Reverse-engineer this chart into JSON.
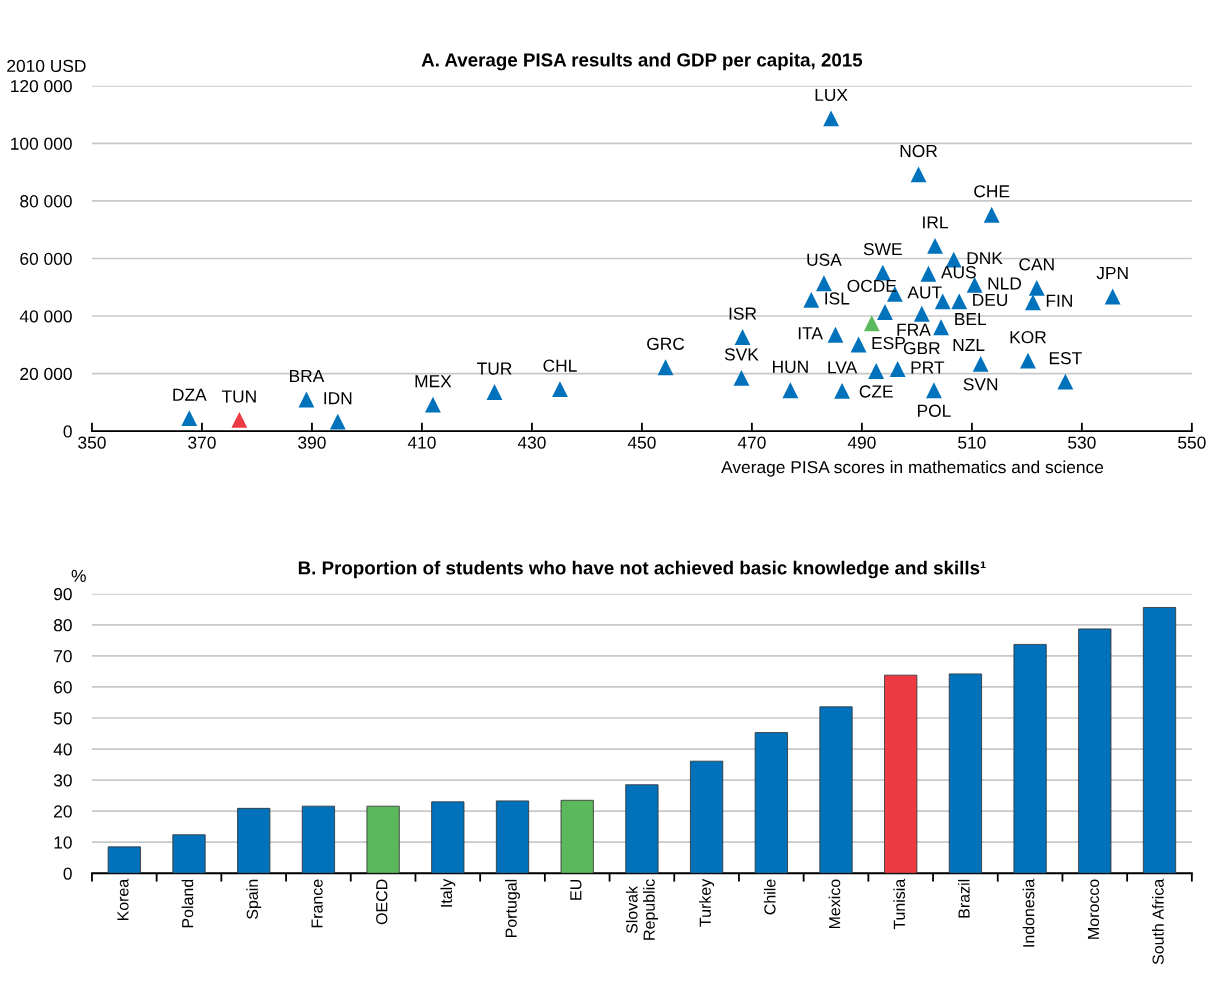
{
  "chart_data": [
    {
      "type": "scatter",
      "title": "A. Average PISA results and GDP per capita, 2015",
      "xlabel": "Average PISA scores in mathematics and science",
      "ylabel": "2010 USD",
      "marker": "triangle",
      "grid": "y",
      "x": [
        367.7,
        376.8,
        389.0,
        394.7,
        412.0,
        423.2,
        435.1,
        454.3,
        468.3,
        468.1,
        477.0,
        483.1,
        480.8,
        485.2,
        486.4,
        489.4,
        491.8,
        494.2,
        493.8,
        496.0,
        492.6,
        496.5,
        484.4,
        500.3,
        513.6,
        503.3,
        506.7,
        502.1,
        510.5,
        504.7,
        507.7,
        500.9,
        504.4,
        511.6,
        503.1,
        521.8,
        521.1,
        520.2,
        527.0,
        535.6
      ],
      "values": [
        4500,
        3900,
        11000,
        3300,
        9200,
        13600,
        14600,
        22200,
        32700,
        18500,
        14200,
        51400,
        45600,
        33500,
        14000,
        30100,
        37500,
        41400,
        55100,
        47700,
        20900,
        21600,
        108700,
        89200,
        75200,
        64400,
        59600,
        54700,
        50800,
        45100,
        45100,
        40800,
        36100,
        23400,
        14200,
        49800,
        44800,
        24500,
        17200,
        46800
      ],
      "colors": [
        "#0072bc",
        "#ee3a43",
        "#0072bc",
        "#0072bc",
        "#0072bc",
        "#0072bc",
        "#0072bc",
        "#0072bc",
        "#0072bc",
        "#0072bc",
        "#0072bc",
        "#0072bc",
        "#0072bc",
        "#0072bc",
        "#0072bc",
        "#0072bc",
        "#5cb85c",
        "#0072bc",
        "#0072bc",
        "#0072bc",
        "#0072bc",
        "#0072bc",
        "#0072bc",
        "#0072bc",
        "#0072bc",
        "#0072bc",
        "#0072bc",
        "#0072bc",
        "#0072bc",
        "#0072bc",
        "#0072bc",
        "#0072bc",
        "#0072bc",
        "#0072bc",
        "#0072bc",
        "#0072bc",
        "#0072bc",
        "#0072bc",
        "#0072bc",
        "#0072bc"
      ],
      "annotations": [
        {
          "text": "DZA",
          "x": 367.7,
          "y": 4500
        },
        {
          "text": "TUN",
          "x": 376.8,
          "y": 3900
        },
        {
          "text": "BRA",
          "x": 389.0,
          "y": 11000
        },
        {
          "text": "IDN",
          "x": 394.7,
          "y": 3300
        },
        {
          "text": "MEX",
          "x": 412.0,
          "y": 9200
        },
        {
          "text": "TUR",
          "x": 423.2,
          "y": 13600
        },
        {
          "text": "CHL",
          "x": 435.1,
          "y": 14600
        },
        {
          "text": "GRC",
          "x": 454.3,
          "y": 22200
        },
        {
          "text": "ISR",
          "x": 468.3,
          "y": 32700
        },
        {
          "text": "SVK",
          "x": 468.1,
          "y": 18500
        },
        {
          "text": "HUN",
          "x": 477.0,
          "y": 14200
        },
        {
          "text": "USA",
          "x": 483.1,
          "y": 51400
        },
        {
          "text": "ISL",
          "x": 480.8,
          "y": 45600
        },
        {
          "text": "ITA",
          "x": 485.2,
          "y": 33500
        },
        {
          "text": "LVA",
          "x": 486.4,
          "y": 14000
        },
        {
          "text": "ESP",
          "x": 489.4,
          "y": 30100
        },
        {
          "text": "OCDE",
          "x": 491.8,
          "y": 37500
        },
        {
          "text": "FRA",
          "x": 494.2,
          "y": 41400
        },
        {
          "text": "SWE",
          "x": 493.8,
          "y": 55100
        },
        {
          "text": "AUT",
          "x": 496.0,
          "y": 47700
        },
        {
          "text": "CZE",
          "x": 492.6,
          "y": 20900
        },
        {
          "text": "PRT",
          "x": 496.5,
          "y": 21600
        },
        {
          "text": "LUX",
          "x": 484.4,
          "y": 108700
        },
        {
          "text": "NOR",
          "x": 500.3,
          "y": 89200
        },
        {
          "text": "CHE",
          "x": 513.6,
          "y": 75200
        },
        {
          "text": "IRL",
          "x": 503.3,
          "y": 64400
        },
        {
          "text": "DNK",
          "x": 506.7,
          "y": 59600
        },
        {
          "text": "AUS",
          "x": 502.1,
          "y": 54700
        },
        {
          "text": "NLD",
          "x": 510.5,
          "y": 50800
        },
        {
          "text": "BEL",
          "x": 504.7,
          "y": 45100
        },
        {
          "text": "DEU",
          "x": 507.7,
          "y": 45100
        },
        {
          "text": "GBR",
          "x": 500.9,
          "y": 40800
        },
        {
          "text": "NZL",
          "x": 504.4,
          "y": 36100
        },
        {
          "text": "SVN",
          "x": 511.6,
          "y": 23400
        },
        {
          "text": "POL",
          "x": 503.1,
          "y": 14200
        },
        {
          "text": "CAN",
          "x": 521.8,
          "y": 49800
        },
        {
          "text": "FIN",
          "x": 521.1,
          "y": 44800
        },
        {
          "text": "KOR",
          "x": 520.2,
          "y": 24500
        },
        {
          "text": "EST",
          "x": 527.0,
          "y": 17200
        },
        {
          "text": "JPN",
          "x": 535.6,
          "y": 46800
        }
      ],
      "xlim": [
        350,
        550
      ],
      "xticks": [
        350,
        370,
        390,
        410,
        430,
        450,
        470,
        490,
        510,
        530,
        550
      ],
      "ylim": [
        0,
        120000
      ],
      "yticks": [
        0,
        {
          "value": 20000,
          "label": "20 000"
        },
        {
          "value": 40000,
          "label": "40 000"
        },
        {
          "value": 60000,
          "label": "60 000"
        },
        {
          "value": 80000,
          "label": "80 000"
        },
        {
          "value": 100000,
          "label": "100 000"
        },
        {
          "value": 120000,
          "label": "120 000"
        }
      ]
    },
    {
      "type": "bar",
      "title": "B. Proportion of students who have not achieved basic knowledge and skills¹",
      "ylabel": "%",
      "grid": "y",
      "categories": [
        "Korea",
        "Poland",
        "Spain",
        "France",
        "OECD",
        "Italy",
        "Portugal",
        "EU",
        "Slovak\nRepublic",
        "Turkey",
        "Chile",
        "Mexico",
        "Tunisia",
        "Brazil",
        "Indonesia",
        "Morocco",
        "South Africa"
      ],
      "values": [
        8.5,
        12.4,
        20.9,
        21.6,
        21.6,
        23.0,
        23.3,
        23.5,
        28.5,
        36.1,
        45.3,
        53.6,
        63.8,
        64.2,
        73.7,
        78.7,
        85.6
      ],
      "colors": [
        "#0072bc",
        "#0072bc",
        "#0072bc",
        "#0072bc",
        "#5cb85c",
        "#0072bc",
        "#0072bc",
        "#5cb85c",
        "#0072bc",
        "#0072bc",
        "#0072bc",
        "#0072bc",
        "#ee3a43",
        "#0072bc",
        "#0072bc",
        "#0072bc",
        "#0072bc"
      ],
      "ylim": [
        0,
        90
      ],
      "yticks": [
        0,
        10,
        20,
        30,
        40,
        50,
        60,
        70,
        80,
        90
      ]
    }
  ]
}
